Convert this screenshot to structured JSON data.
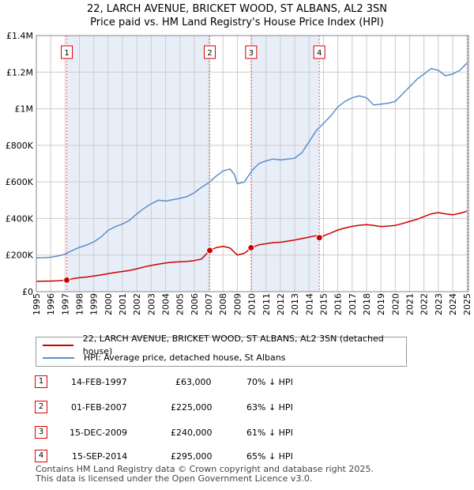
{
  "header": {
    "line1": "22, LARCH AVENUE, BRICKET WOOD, ST ALBANS, AL2 3SN",
    "line2": "Price paid vs. HM Land Registry's House Price Index (HPI)"
  },
  "colors": {
    "property": "#cc0000",
    "hpi": "#5b8fc9",
    "shade": "#e8eef8",
    "grid": "#cccccc",
    "marker_border": "#dd0000"
  },
  "chart_data": {
    "type": "line",
    "title": "22, LARCH AVENUE, BRICKET WOOD, ST ALBANS, AL2 3SN — Price paid vs. HM Land Registry's House Price Index (HPI)",
    "xlabel": "",
    "ylabel": "",
    "xlim": [
      1995,
      2025.1
    ],
    "ylim": [
      0,
      1400000
    ],
    "x_ticks": [
      "1995",
      "1996",
      "1997",
      "1998",
      "1999",
      "2000",
      "2001",
      "2002",
      "2003",
      "2004",
      "2005",
      "2006",
      "2007",
      "2008",
      "2009",
      "2010",
      "2011",
      "2012",
      "2013",
      "2014",
      "2015",
      "2016",
      "2017",
      "2018",
      "2019",
      "2020",
      "2021",
      "2022",
      "2023",
      "2024",
      "2025"
    ],
    "y_ticks": [
      {
        "value": 0,
        "label": "£0"
      },
      {
        "value": 200000,
        "label": "£200K"
      },
      {
        "value": 400000,
        "label": "£400K"
      },
      {
        "value": 600000,
        "label": "£600K"
      },
      {
        "value": 800000,
        "label": "£800K"
      },
      {
        "value": 1000000,
        "label": "£1M"
      },
      {
        "value": 1200000,
        "label": "£1.2M"
      },
      {
        "value": 1400000,
        "label": "£1.4M"
      }
    ],
    "grid": true,
    "series": [
      {
        "name": "22, LARCH AVENUE, BRICKET WOOD, ST ALBANS, AL2 3SN (detached house)",
        "color": "#cc0000",
        "x": [
          1995.0,
          1995.5,
          1996.0,
          1996.5,
          1997.12,
          1997.5,
          1998.0,
          1998.5,
          1999.0,
          1999.5,
          2000.0,
          2000.5,
          2001.0,
          2001.5,
          2002.0,
          2002.5,
          2003.0,
          2003.5,
          2004.0,
          2004.5,
          2005.0,
          2005.5,
          2006.0,
          2006.5,
          2007.08,
          2007.5,
          2008.0,
          2008.5,
          2009.0,
          2009.5,
          2009.96,
          2010.5,
          2011.0,
          2011.5,
          2012.0,
          2012.5,
          2013.0,
          2013.5,
          2014.0,
          2014.5,
          2014.71,
          2015.0,
          2015.5,
          2016.0,
          2016.5,
          2017.0,
          2017.5,
          2018.0,
          2018.5,
          2019.0,
          2019.5,
          2020.0,
          2020.5,
          2021.0,
          2021.5,
          2022.0,
          2022.5,
          2023.0,
          2023.5,
          2024.0,
          2024.5,
          2025.0
        ],
        "values": [
          56000,
          57000,
          58000,
          59000,
          63000,
          70000,
          76000,
          80000,
          85000,
          91000,
          98000,
          105000,
          110000,
          116000,
          125000,
          135000,
          143000,
          150000,
          157000,
          161000,
          163000,
          165000,
          170000,
          178000,
          225000,
          240000,
          248000,
          238000,
          200000,
          210000,
          240000,
          256000,
          262000,
          268000,
          270000,
          276000,
          282000,
          290000,
          298000,
          306000,
          295000,
          305000,
          320000,
          337000,
          348000,
          357000,
          363000,
          366000,
          362000,
          356000,
          358000,
          362000,
          372000,
          384000,
          395000,
          410000,
          425000,
          432000,
          425000,
          420000,
          428000,
          440000
        ]
      },
      {
        "name": "HPI: Average price, detached house, St Albans",
        "color": "#5b8fc9",
        "x": [
          1995.0,
          1995.5,
          1996.0,
          1996.5,
          1997.0,
          1997.5,
          1998.0,
          1998.5,
          1999.0,
          1999.5,
          2000.0,
          2000.5,
          2001.0,
          2001.5,
          2002.0,
          2002.5,
          2003.0,
          2003.5,
          2004.0,
          2004.5,
          2005.0,
          2005.5,
          2006.0,
          2006.5,
          2007.0,
          2007.5,
          2008.0,
          2008.5,
          2008.8,
          2009.0,
          2009.5,
          2010.0,
          2010.5,
          2011.0,
          2011.5,
          2012.0,
          2012.5,
          2013.0,
          2013.5,
          2014.0,
          2014.5,
          2015.0,
          2015.5,
          2016.0,
          2016.5,
          2017.0,
          2017.5,
          2018.0,
          2018.5,
          2019.0,
          2019.5,
          2020.0,
          2020.5,
          2021.0,
          2021.5,
          2022.0,
          2022.5,
          2023.0,
          2023.5,
          2024.0,
          2024.5,
          2025.0
        ],
        "values": [
          185000,
          186000,
          188000,
          195000,
          205000,
          225000,
          242000,
          255000,
          272000,
          298000,
          335000,
          355000,
          370000,
          390000,
          425000,
          455000,
          480000,
          500000,
          495000,
          502000,
          510000,
          520000,
          540000,
          570000,
          595000,
          630000,
          660000,
          670000,
          640000,
          590000,
          600000,
          660000,
          700000,
          715000,
          725000,
          720000,
          725000,
          730000,
          760000,
          820000,
          880000,
          920000,
          960000,
          1010000,
          1040000,
          1060000,
          1070000,
          1060000,
          1020000,
          1025000,
          1030000,
          1040000,
          1080000,
          1120000,
          1160000,
          1190000,
          1220000,
          1210000,
          1180000,
          1190000,
          1210000,
          1250000
        ]
      }
    ],
    "transactions": [
      {
        "id": "1",
        "date": "14-FEB-1997",
        "x": 1997.12,
        "price_value": 63000,
        "price": "£63,000",
        "hpi_diff": "70% ↓ HPI"
      },
      {
        "id": "2",
        "date": "01-FEB-2007",
        "x": 2007.08,
        "price_value": 225000,
        "price": "£225,000",
        "hpi_diff": "63% ↓ HPI"
      },
      {
        "id": "3",
        "date": "15-DEC-2009",
        "x": 2009.96,
        "price_value": 240000,
        "price": "£240,000",
        "hpi_diff": "61% ↓ HPI"
      },
      {
        "id": "4",
        "date": "15-SEP-2014",
        "x": 2014.71,
        "price_value": 295000,
        "price": "£295,000",
        "hpi_diff": "65% ↓ HPI"
      }
    ]
  },
  "legend": {
    "property_label": "22, LARCH AVENUE, BRICKET WOOD, ST ALBANS, AL2 3SN (detached house)",
    "hpi_label": "HPI: Average price, detached house, St Albans"
  },
  "footer": {
    "line1": "Contains HM Land Registry data © Crown copyright and database right 2025.",
    "line2": "This data is licensed under the Open Government Licence v3.0."
  }
}
